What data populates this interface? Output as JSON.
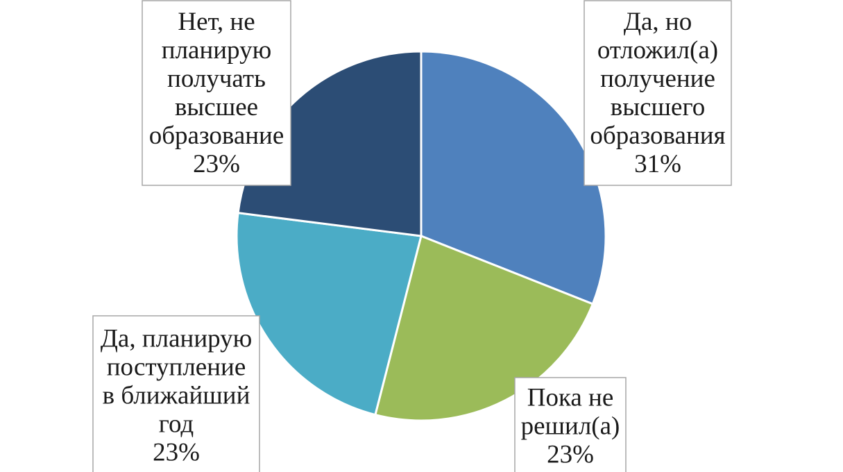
{
  "chart_data": {
    "type": "pie",
    "slices": [
      {
        "label_lines": [
          "Да, но",
          "отложил(а)",
          "получение",
          "высшего",
          "образования"
        ],
        "percent_label": "31%",
        "value": 31,
        "color": "#4f81bd"
      },
      {
        "label_lines": [
          "Пока не",
          "решил(а)"
        ],
        "percent_label": "23%",
        "value": 23,
        "color": "#9bbb59"
      },
      {
        "label_lines": [
          "Да, планирую",
          "поступление",
          "в ближайший",
          "год"
        ],
        "percent_label": "23%",
        "value": 23,
        "color": "#4bacc6"
      },
      {
        "label_lines": [
          "Нет, не",
          "планирую",
          "получать",
          "высшее",
          "образование"
        ],
        "percent_label": "23%",
        "value": 23,
        "color": "#2c4d75"
      }
    ],
    "title": "",
    "legend": "none"
  }
}
